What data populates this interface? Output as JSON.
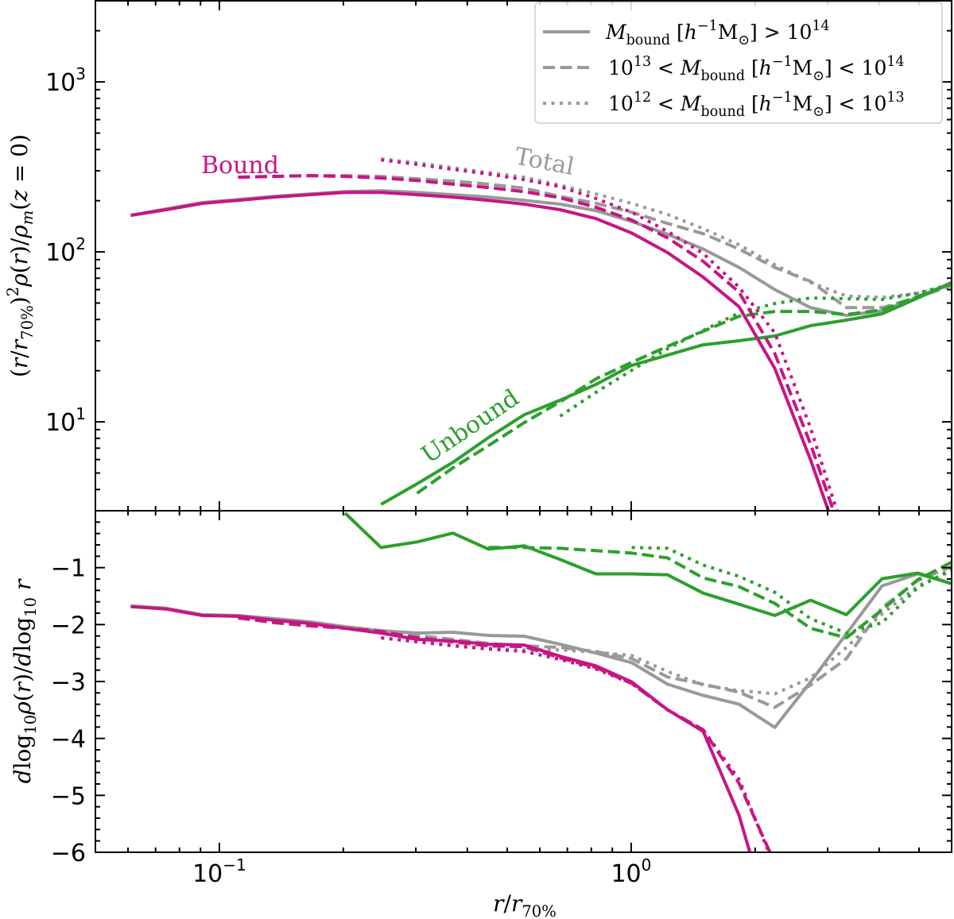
{
  "chart_data": [
    {
      "panel": "top",
      "type": "line",
      "xscale": "log",
      "yscale": "log",
      "xlim": [
        0.05,
        6
      ],
      "ylim": [
        3,
        3000
      ],
      "grid": false,
      "ylabel": [
        {
          "t": "(",
          "s": ""
        },
        {
          "t": "r",
          "s": "it"
        },
        {
          "t": "/",
          "s": ""
        },
        {
          "t": "r",
          "s": "it"
        },
        {
          "t": "70%",
          "s": "sub"
        },
        {
          "t": ")",
          "s": ""
        },
        {
          "t": "2",
          "s": "sup"
        },
        {
          "t": "ρ",
          "s": "it"
        },
        {
          "t": "(",
          "s": ""
        },
        {
          "t": "r",
          "s": "it"
        },
        {
          "t": ")/",
          "s": ""
        },
        {
          "t": "ρ",
          "s": "it"
        },
        {
          "t": "m",
          "s": "sub-it"
        },
        {
          "t": "(",
          "s": ""
        },
        {
          "t": "z",
          "s": "it"
        },
        {
          "t": " = 0)",
          "s": ""
        }
      ],
      "yticks": [
        {
          "value": 10,
          "base": "10",
          "exp": "1"
        },
        {
          "value": 100,
          "base": "10",
          "exp": "2"
        },
        {
          "value": 1000,
          "base": "10",
          "exp": "3"
        }
      ],
      "x": [
        0.0609,
        0.0744,
        0.0909,
        0.111,
        0.136,
        0.166,
        0.202,
        0.247,
        0.302,
        0.369,
        0.45,
        0.55,
        0.672,
        0.821,
        1.003,
        1.225,
        1.496,
        1.828,
        2.233,
        2.727,
        3.331,
        4.069,
        4.97,
        6.07
      ],
      "series": [
        {
          "component": "bound",
          "mass_bin": 0,
          "style": "solid",
          "values": [
            164,
            177,
            193,
            201,
            210,
            217,
            224,
            224,
            217,
            210,
            201,
            191,
            177,
            157,
            129,
            99,
            71,
            47.6,
            20.6,
            5.97,
            1.5,
            null,
            null,
            null
          ]
        },
        {
          "component": "bound",
          "mass_bin": 1,
          "style": "dashed",
          "values": [
            null,
            null,
            null,
            275,
            278,
            281,
            278,
            272,
            263,
            250,
            239,
            226,
            208,
            183,
            154,
            121,
            88,
            58,
            25.2,
            7.4,
            1.8,
            null,
            null,
            null
          ]
        },
        {
          "component": "bound",
          "mass_bin": 2,
          "style": "dotted",
          "values": [
            null,
            null,
            null,
            null,
            null,
            null,
            null,
            348,
            327,
            306,
            287,
            266,
            242,
            206,
            171,
            132,
            98,
            62,
            33.4,
            9.2,
            2,
            null,
            null,
            null
          ]
        },
        {
          "component": "total",
          "mass_bin": 0,
          "style": "solid",
          "values": [
            164,
            179,
            195,
            203,
            212,
            219,
            226,
            229,
            224,
            217,
            210,
            201,
            191,
            175,
            151,
            127,
            104,
            81,
            60,
            47,
            42.3,
            45,
            54,
            67
          ]
        },
        {
          "component": "total",
          "mass_bin": 1,
          "style": "dashed",
          "values": [
            null,
            null,
            null,
            275,
            278,
            281,
            281,
            278,
            269,
            261,
            250,
            237,
            212,
            193,
            171,
            147,
            128,
            104,
            81,
            67,
            47,
            47,
            54,
            64
          ]
        },
        {
          "component": "total",
          "mass_bin": 2,
          "style": "dotted",
          "values": [
            null,
            null,
            null,
            null,
            null,
            null,
            null,
            352,
            334,
            313,
            293,
            275,
            247,
            219,
            193,
            166,
            137,
            110,
            84,
            66,
            55,
            54,
            57,
            64
          ]
        },
        {
          "component": "unbound",
          "mass_bin": 0,
          "style": "solid",
          "values": [
            null,
            null,
            null,
            null,
            null,
            null,
            null,
            3.27,
            4.32,
            5.78,
            8.07,
            11.0,
            13.4,
            16.6,
            21.5,
            24.7,
            28.4,
            30.0,
            32.0,
            36.8,
            39.7,
            43.2,
            53.6,
            66.4
          ]
        },
        {
          "component": "unbound",
          "mass_bin": 1,
          "style": "dashed",
          "values": [
            null,
            null,
            null,
            null,
            null,
            null,
            null,
            null,
            3.8,
            5.36,
            7.24,
            9.89,
            13.1,
            17.9,
            22.4,
            27.8,
            34.1,
            41.8,
            44.6,
            44.6,
            42.8,
            45.6,
            54.7,
            65.8
          ]
        },
        {
          "component": "unbound",
          "mass_bin": 2,
          "style": "dotted",
          "values": [
            null,
            null,
            null,
            null,
            null,
            null,
            null,
            null,
            null,
            null,
            null,
            null,
            10.8,
            14.9,
            20.1,
            26.9,
            34.5,
            43.7,
            49.7,
            53.6,
            53.0,
            52.5,
            57.2,
            65.0
          ]
        }
      ],
      "annotations": {
        "bound": "Bound",
        "total": "Total",
        "unbound": "Unbound"
      },
      "legend": {
        "placement": "top-right",
        "entries": [
          {
            "style": "solid",
            "label": [
              {
                "t": "M",
                "s": "it"
              },
              {
                "t": "bound",
                "s": "sub"
              },
              {
                "t": " [",
                "s": ""
              },
              {
                "t": "h",
                "s": "it"
              },
              {
                "t": "−1",
                "s": "sup"
              },
              {
                "t": "M",
                "s": ""
              },
              {
                "t": "⊙",
                "s": "sub"
              },
              {
                "t": "] > 10",
                "s": ""
              },
              {
                "t": "14",
                "s": "sup"
              }
            ]
          },
          {
            "style": "dashed",
            "label": [
              {
                "t": "10",
                "s": ""
              },
              {
                "t": "13",
                "s": "sup"
              },
              {
                "t": " < ",
                "s": ""
              },
              {
                "t": "M",
                "s": "it"
              },
              {
                "t": "bound",
                "s": "sub"
              },
              {
                "t": " [",
                "s": ""
              },
              {
                "t": "h",
                "s": "it"
              },
              {
                "t": "−1",
                "s": "sup"
              },
              {
                "t": "M",
                "s": ""
              },
              {
                "t": "⊙",
                "s": "sub"
              },
              {
                "t": "] < 10",
                "s": ""
              },
              {
                "t": "14",
                "s": "sup"
              }
            ]
          },
          {
            "style": "dotted",
            "label": [
              {
                "t": "10",
                "s": ""
              },
              {
                "t": "12",
                "s": "sup"
              },
              {
                "t": " < ",
                "s": ""
              },
              {
                "t": "M",
                "s": "it"
              },
              {
                "t": "bound",
                "s": "sub"
              },
              {
                "t": " [",
                "s": ""
              },
              {
                "t": "h",
                "s": "it"
              },
              {
                "t": "−1",
                "s": "sup"
              },
              {
                "t": "M",
                "s": ""
              },
              {
                "t": "⊙",
                "s": "sub"
              },
              {
                "t": "] < 10",
                "s": ""
              },
              {
                "t": "13",
                "s": "sup"
              }
            ]
          }
        ]
      }
    },
    {
      "panel": "bottom",
      "type": "line",
      "xscale": "log",
      "yscale": "linear",
      "xlim": [
        0.05,
        6
      ],
      "ylim": [
        -6,
        0
      ],
      "grid": false,
      "xlabel": [
        {
          "t": "r",
          "s": "it"
        },
        {
          "t": "/",
          "s": ""
        },
        {
          "t": "r",
          "s": "it"
        },
        {
          "t": "70%",
          "s": "sub"
        }
      ],
      "ylabel": [
        {
          "t": "d",
          "s": "it"
        },
        {
          "t": "log",
          "s": ""
        },
        {
          "t": "10",
          "s": "sub"
        },
        {
          "t": "ρ",
          "s": "it"
        },
        {
          "t": "(",
          "s": ""
        },
        {
          "t": "r",
          "s": "it"
        },
        {
          "t": ")/",
          "s": ""
        },
        {
          "t": "d",
          "s": "it"
        },
        {
          "t": "log",
          "s": ""
        },
        {
          "t": "10",
          "s": "sub"
        },
        {
          "t": " r",
          "s": "it"
        }
      ],
      "xticks": [
        {
          "value": 0.1,
          "base": "10",
          "exp": "−1"
        },
        {
          "value": 1,
          "base": "10",
          "exp": "0"
        }
      ],
      "yticks": [
        {
          "value": -1,
          "label": "−1"
        },
        {
          "value": -2,
          "label": "−2"
        },
        {
          "value": -3,
          "label": "−3"
        },
        {
          "value": -4,
          "label": "−4"
        },
        {
          "value": -5,
          "label": "−5"
        },
        {
          "value": -6,
          "label": "−6"
        }
      ],
      "x": [
        0.0609,
        0.0744,
        0.0909,
        0.111,
        0.136,
        0.166,
        0.202,
        0.247,
        0.302,
        0.369,
        0.45,
        0.55,
        0.672,
        0.821,
        1.003,
        1.225,
        1.496,
        1.828,
        2.233,
        2.727,
        3.331,
        4.069,
        4.97,
        6.07
      ],
      "series": [
        {
          "component": "bound",
          "mass_bin": 0,
          "style": "solid",
          "values": [
            -1.685,
            -1.728,
            -1.84,
            -1.854,
            -1.924,
            -1.98,
            -2.065,
            -2.149,
            -2.261,
            -2.289,
            -2.346,
            -2.36,
            -2.556,
            -2.725,
            -3.006,
            -3.497,
            -3.876,
            -5.35,
            -7.5,
            null,
            null,
            null,
            null,
            null
          ]
        },
        {
          "component": "bound",
          "mass_bin": 1,
          "style": "dashed",
          "values": [
            null,
            null,
            null,
            -1.882,
            -1.966,
            -2.022,
            -2.065,
            -2.121,
            -2.233,
            -2.303,
            -2.374,
            -2.388,
            -2.584,
            -2.753,
            -3.034,
            -3.497,
            -3.848,
            -4.789,
            -6.19,
            null,
            null,
            null,
            null,
            null
          ]
        },
        {
          "component": "bound",
          "mass_bin": 2,
          "style": "dotted",
          "values": [
            null,
            null,
            null,
            null,
            null,
            null,
            null,
            -2.233,
            -2.303,
            -2.374,
            -2.43,
            -2.472,
            -2.612,
            -2.781,
            -3.034,
            -3.497,
            -3.848,
            -4.719,
            -6.26,
            null,
            null,
            null,
            null,
            null
          ]
        },
        {
          "component": "total",
          "mass_bin": 0,
          "style": "solid",
          "values": [
            -1.671,
            -1.713,
            -1.826,
            -1.84,
            -1.896,
            -1.952,
            -2.037,
            -2.107,
            -2.149,
            -2.135,
            -2.191,
            -2.205,
            -2.346,
            -2.5,
            -2.669,
            -3.048,
            -3.244,
            -3.399,
            -3.806,
            -3.006,
            -2.163,
            -1.32,
            -1.11,
            -1.292
          ]
        },
        {
          "component": "total",
          "mass_bin": 1,
          "style": "dashed",
          "values": [
            null,
            null,
            null,
            -1.882,
            -1.952,
            -2.008,
            -2.051,
            -2.107,
            -2.191,
            -2.261,
            -2.331,
            -2.374,
            -2.402,
            -2.472,
            -2.598,
            -2.921,
            -3.048,
            -3.188,
            -3.455,
            -3.062,
            -2.598,
            -1.699,
            -1.222,
            -0.969
          ]
        },
        {
          "component": "total",
          "mass_bin": 2,
          "style": "dotted",
          "values": [
            null,
            null,
            null,
            null,
            null,
            null,
            null,
            -2.233,
            -2.303,
            -2.36,
            -2.416,
            -2.444,
            -2.444,
            -2.486,
            -2.542,
            -2.823,
            -3.062,
            -3.16,
            -3.216,
            -2.935,
            -2.402,
            -1.812,
            -1.32,
            -1.039
          ]
        },
        {
          "component": "unbound",
          "mass_bin": 0,
          "style": "solid",
          "values": [
            null,
            null,
            null,
            null,
            null,
            null,
            -0.042,
            -0.646,
            -0.548,
            -0.393,
            -0.674,
            -0.618,
            -0.857,
            -1.11,
            -1.11,
            -1.124,
            -1.447,
            -1.643,
            -1.84,
            -1.573,
            -1.826,
            -1.194,
            -1.096,
            -1.292
          ]
        },
        {
          "component": "unbound",
          "mass_bin": 1,
          "style": "dashed",
          "values": [
            null,
            null,
            null,
            null,
            null,
            null,
            null,
            null,
            null,
            null,
            -0.646,
            -0.646,
            -0.66,
            -0.702,
            -0.744,
            -0.829,
            -1.18,
            -1.334,
            -1.629,
            -2.065,
            -2.233,
            -1.742,
            -1.208,
            -0.885
          ]
        },
        {
          "component": "unbound",
          "mass_bin": 2,
          "style": "dotted",
          "values": [
            null,
            null,
            null,
            null,
            null,
            null,
            null,
            null,
            null,
            null,
            null,
            null,
            null,
            null,
            -0.646,
            -0.66,
            -0.955,
            -1.152,
            -1.433,
            -1.896,
            -2.149,
            -1.966,
            -1.348,
            -1.011
          ]
        }
      ]
    }
  ],
  "colors": {
    "bound": "#c71585",
    "total": "#999999",
    "unbound": "#2ca02c",
    "legend_line": "#999999",
    "axes": "#000000"
  }
}
